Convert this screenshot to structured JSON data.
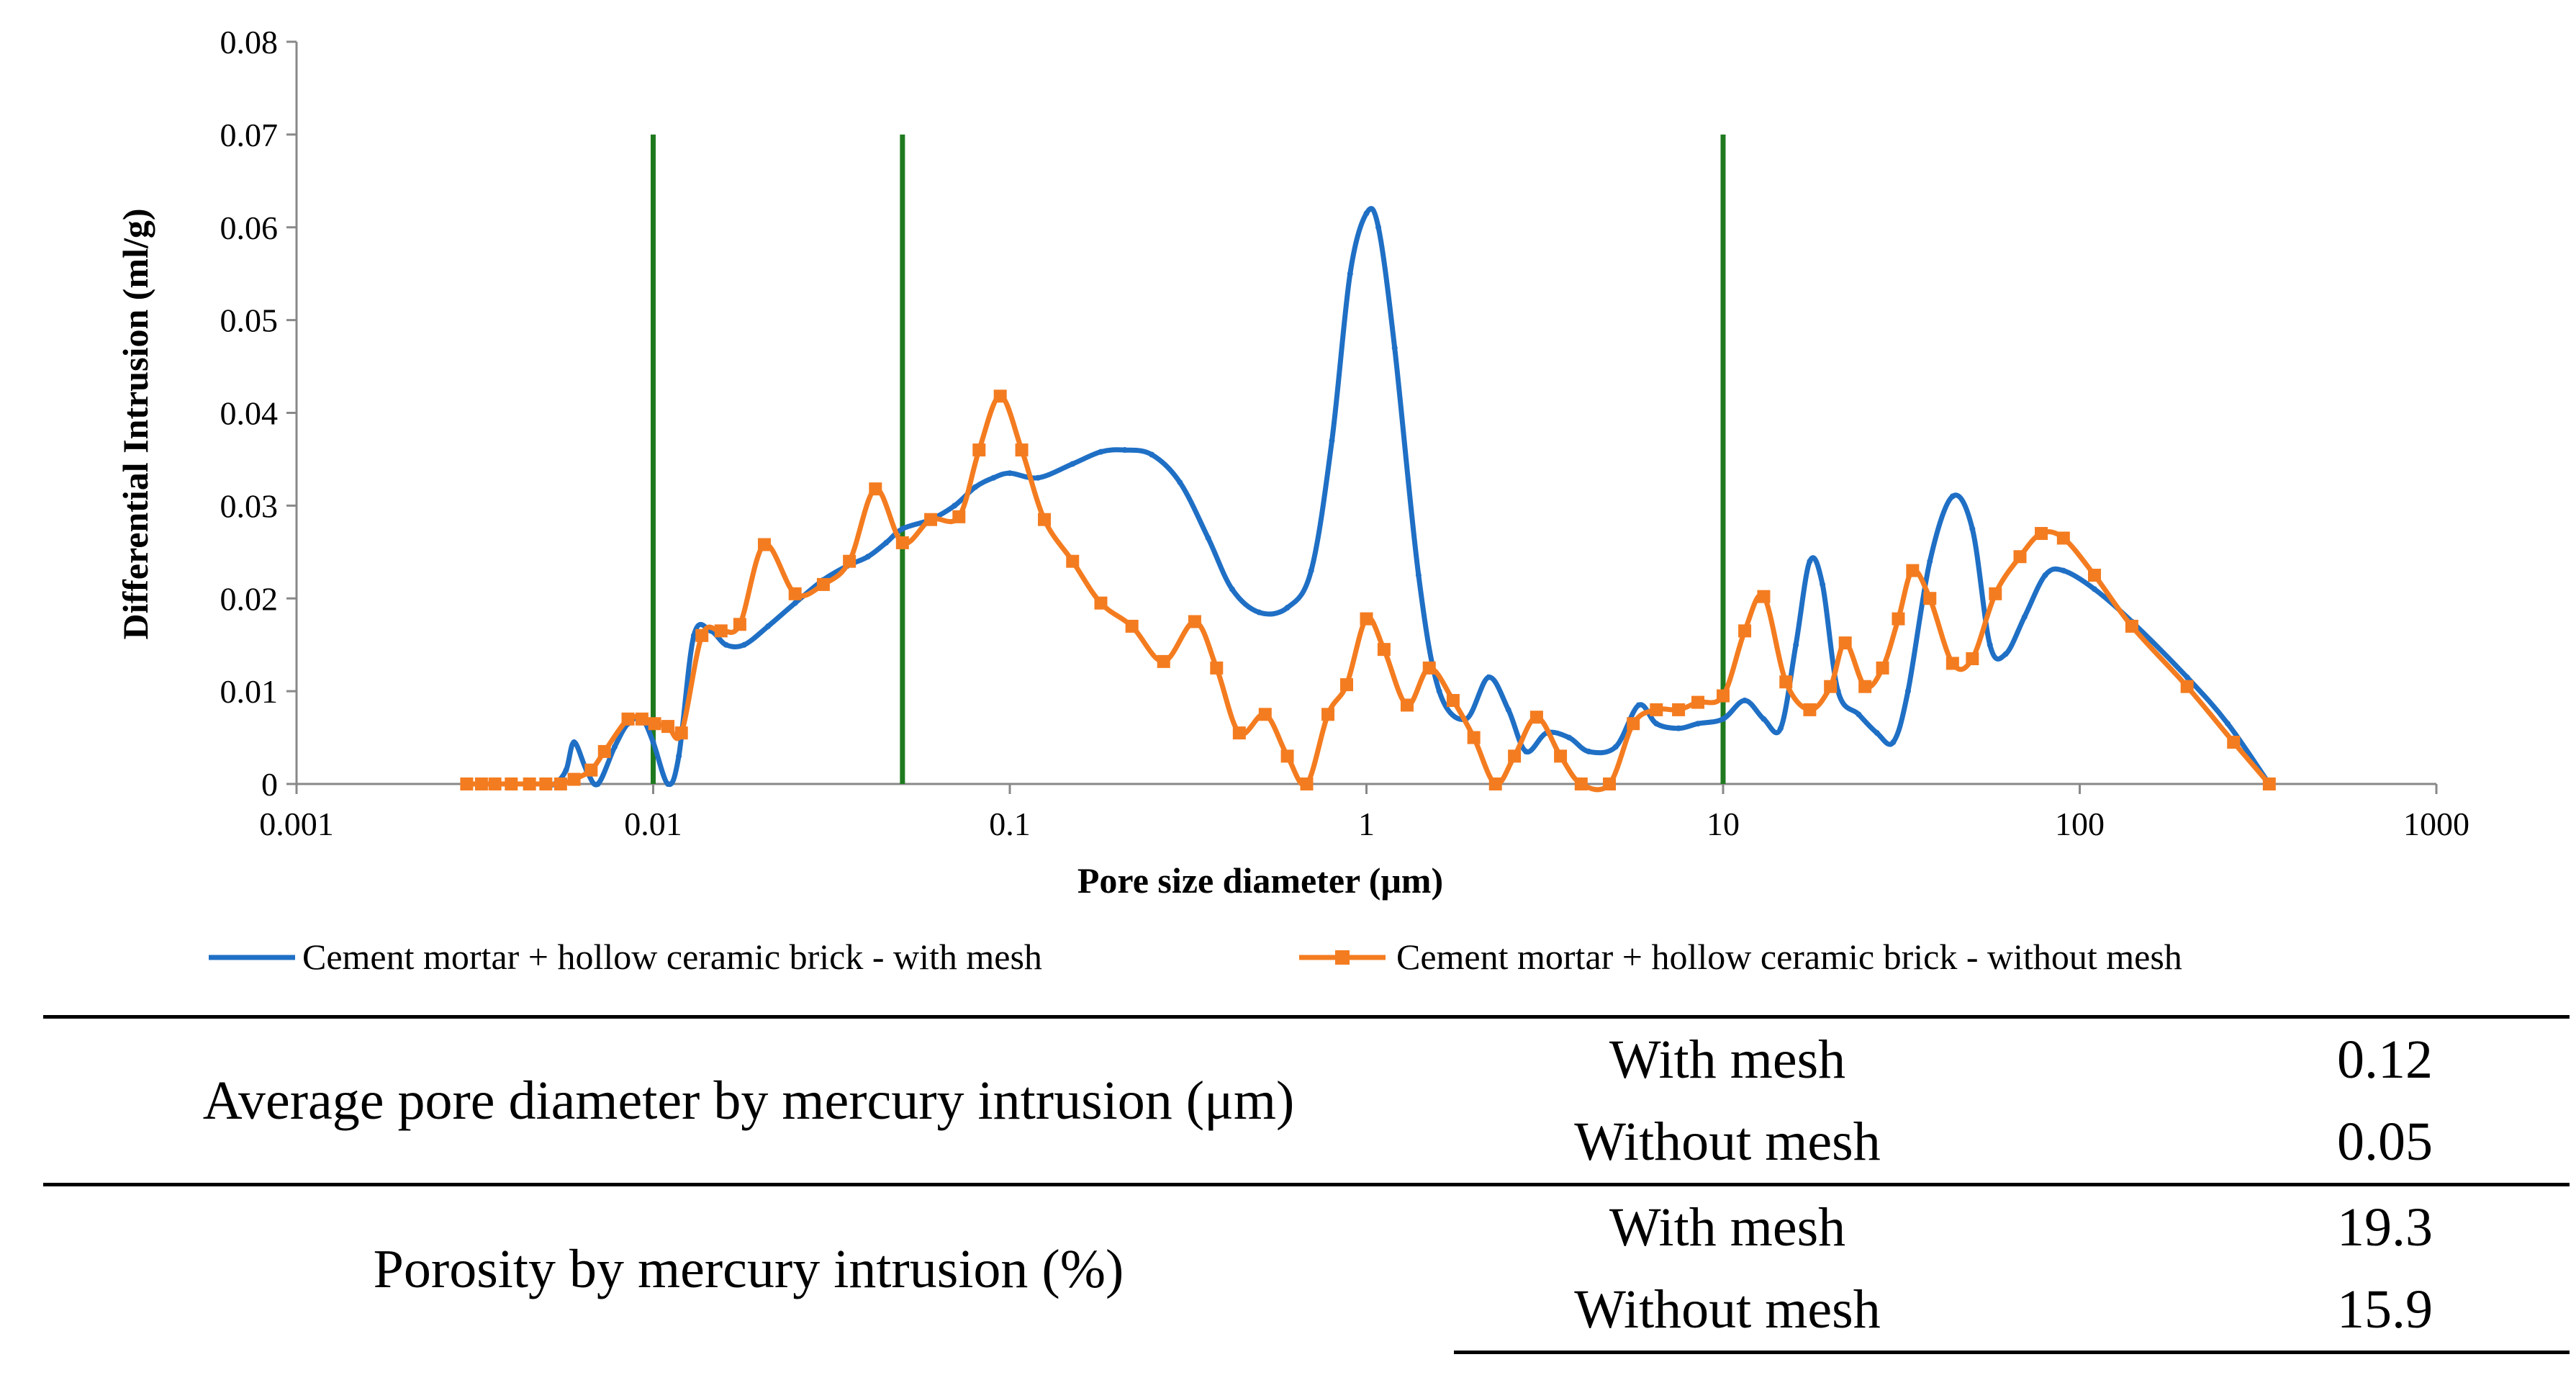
{
  "chart_data": {
    "type": "line",
    "xscale": "log",
    "xlim": [
      0.001,
      1000
    ],
    "ylim": [
      0,
      0.08
    ],
    "xlabel": "Pore size diameter (μm)",
    "ylabel": "Differential Intrusion  (ml/g)",
    "x_ticks": [
      "0.001",
      "0.01",
      "0.1",
      "1",
      "10",
      "100",
      "1000"
    ],
    "y_ticks": [
      "0",
      "0.01",
      "0.02",
      "0.03",
      "0.04",
      "0.05",
      "0.06",
      "0.07",
      "0.08"
    ],
    "vertical_lines": [
      0.01,
      0.05,
      10
    ],
    "vertical_line_top": 0.07,
    "colors": {
      "with_mesh": "#1F6FC5",
      "without_mesh": "#F47C20",
      "vertical": "#1F7A1F"
    },
    "legend_position": "bottom",
    "series": [
      {
        "name": "Cement mortar + hollow ceramic brick - with mesh",
        "marker": "dot",
        "x": [
          0.003,
          0.0033,
          0.0037,
          0.004,
          0.0045,
          0.005,
          0.0053,
          0.0057,
          0.006,
          0.0065,
          0.007,
          0.0078,
          0.0085,
          0.0093,
          0.01,
          0.011,
          0.0118,
          0.013,
          0.0145,
          0.016,
          0.018,
          0.021,
          0.025,
          0.03,
          0.035,
          0.04,
          0.045,
          0.05,
          0.06,
          0.07,
          0.08,
          0.09,
          0.1,
          0.12,
          0.15,
          0.18,
          0.21,
          0.25,
          0.3,
          0.36,
          0.42,
          0.5,
          0.6,
          0.7,
          0.8,
          0.9,
          1.0,
          1.08,
          1.2,
          1.4,
          1.6,
          1.9,
          2.2,
          2.5,
          2.8,
          3.2,
          3.7,
          4.2,
          5.0,
          5.8,
          6.5,
          7.5,
          8.5,
          10,
          11.5,
          13,
          14.5,
          16,
          17.5,
          19,
          21,
          24,
          27,
          30,
          33,
          38,
          44,
          50,
          56,
          62,
          70,
          80,
          90,
          110,
          140,
          200,
          260,
          340
        ],
        "y": [
          0,
          0,
          0,
          0,
          0,
          0,
          0,
          0.0015,
          0.0045,
          0.0015,
          0,
          0.004,
          0.0065,
          0.007,
          0.0045,
          0,
          0.003,
          0.016,
          0.0165,
          0.015,
          0.015,
          0.017,
          0.0195,
          0.022,
          0.0235,
          0.0245,
          0.026,
          0.0275,
          0.0285,
          0.03,
          0.032,
          0.033,
          0.0335,
          0.033,
          0.0345,
          0.0358,
          0.036,
          0.0355,
          0.0325,
          0.0265,
          0.021,
          0.0185,
          0.019,
          0.023,
          0.037,
          0.055,
          0.0615,
          0.06,
          0.047,
          0.0225,
          0.01,
          0.007,
          0.0115,
          0.008,
          0.0035,
          0.0055,
          0.005,
          0.0035,
          0.004,
          0.0085,
          0.0065,
          0.006,
          0.0065,
          0.007,
          0.009,
          0.007,
          0.006,
          0.015,
          0.024,
          0.0215,
          0.01,
          0.0075,
          0.0055,
          0.0045,
          0.01,
          0.024,
          0.031,
          0.0275,
          0.015,
          0.014,
          0.018,
          0.0225,
          0.023,
          0.021,
          0.0175,
          0.0115,
          0.0065,
          0
        ]
      },
      {
        "name": "Cement mortar + hollow ceramic brick - without mesh",
        "marker": "square",
        "x": [
          0.003,
          0.0033,
          0.0036,
          0.004,
          0.0045,
          0.005,
          0.0055,
          0.006,
          0.0067,
          0.0073,
          0.0085,
          0.0093,
          0.0101,
          0.011,
          0.012,
          0.0137,
          0.0155,
          0.0175,
          0.0205,
          0.025,
          0.03,
          0.0355,
          0.042,
          0.05,
          0.06,
          0.072,
          0.082,
          0.094,
          0.108,
          0.125,
          0.15,
          0.18,
          0.22,
          0.27,
          0.33,
          0.38,
          0.44,
          0.52,
          0.6,
          0.68,
          0.78,
          0.88,
          1.0,
          1.12,
          1.3,
          1.5,
          1.75,
          2.0,
          2.3,
          2.6,
          3.0,
          3.5,
          4.0,
          4.8,
          5.6,
          6.5,
          7.5,
          8.5,
          10,
          11.5,
          13,
          15,
          17.5,
          20,
          22,
          25,
          28,
          31,
          34,
          38,
          44,
          50,
          58,
          68,
          78,
          90,
          110,
          140,
          200,
          270,
          340
        ],
        "y": [
          0,
          0,
          0,
          0,
          0,
          0,
          0,
          0.0005,
          0.0015,
          0.0035,
          0.007,
          0.007,
          0.0065,
          0.0062,
          0.0055,
          0.016,
          0.0165,
          0.0172,
          0.0258,
          0.0205,
          0.0215,
          0.024,
          0.0318,
          0.026,
          0.0285,
          0.0288,
          0.036,
          0.0418,
          0.036,
          0.0285,
          0.024,
          0.0195,
          0.017,
          0.0132,
          0.0175,
          0.0125,
          0.0055,
          0.0075,
          0.003,
          0.0,
          0.0075,
          0.0107,
          0.0178,
          0.0145,
          0.0085,
          0.0125,
          0.009,
          0.005,
          0.0,
          0.003,
          0.0072,
          0.003,
          0.0,
          0.0,
          0.0065,
          0.008,
          0.008,
          0.0088,
          0.0095,
          0.0165,
          0.0202,
          0.011,
          0.008,
          0.0105,
          0.0152,
          0.0105,
          0.0125,
          0.0178,
          0.023,
          0.02,
          0.013,
          0.0135,
          0.0205,
          0.0245,
          0.027,
          0.0265,
          0.0225,
          0.017,
          0.0105,
          0.0045,
          0
        ]
      }
    ]
  },
  "table": {
    "rows": [
      {
        "parameter": "Average pore diameter by mercury intrusion (μm)",
        "entries": [
          {
            "condition": "With mesh",
            "value": "0.12"
          },
          {
            "condition": "Without mesh",
            "value": "0.05"
          }
        ]
      },
      {
        "parameter": "Porosity by mercury intrusion (%)",
        "entries": [
          {
            "condition": "With mesh",
            "value": "19.3"
          },
          {
            "condition": "Without mesh",
            "value": "15.9"
          }
        ]
      }
    ]
  }
}
